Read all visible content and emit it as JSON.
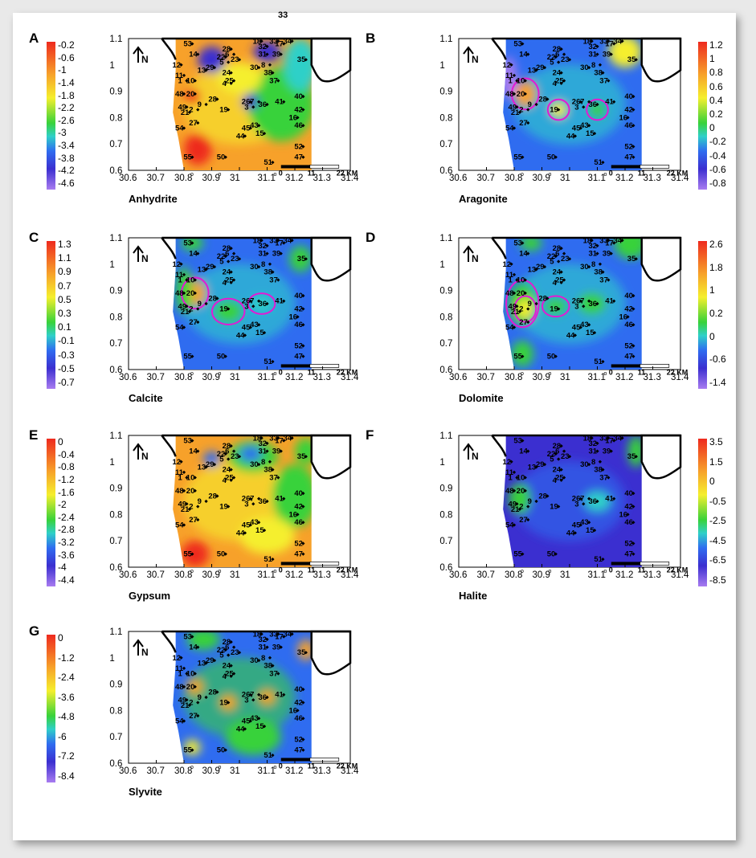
{
  "figure": {
    "top_label": "33",
    "x_ticks": [
      "30.6",
      "30.7",
      "30.8",
      "30.9",
      "31",
      "31.1",
      "31.2",
      "31.3",
      "31.4"
    ],
    "y_ticks": [
      "30.6",
      "30.7",
      "30.8",
      "30.9",
      "31",
      "31.1"
    ],
    "north_label": "N",
    "scale_bar": {
      "labels": [
        "0",
        "11",
        "22"
      ],
      "unit": "KM"
    },
    "panels": [
      {
        "letter": "A",
        "mineral": "Anhydrite",
        "colorbar_ticks": [
          "-0.2",
          "-0.6",
          "-1",
          "-1.4",
          "-1.8",
          "-2.2",
          "-2.6",
          "-3",
          "-3.4",
          "-3.8",
          "-4.2",
          "-4.6"
        ]
      },
      {
        "letter": "B",
        "mineral": "Aragonite",
        "colorbar_ticks": [
          "1.2",
          "1",
          "0.8",
          "0.6",
          "0.4",
          "0.2",
          "0",
          "-0.2",
          "-0.4",
          "-0.6",
          "-0.8"
        ]
      },
      {
        "letter": "C",
        "mineral": "Calcite",
        "colorbar_ticks": [
          "1.3",
          "1.1",
          "0.9",
          "0.7",
          "0.5",
          "0.3",
          "0.1",
          "-0.1",
          "-0.3",
          "-0.5",
          "-0.7"
        ]
      },
      {
        "letter": "D",
        "mineral": "Dolomite",
        "colorbar_ticks": [
          "2.6",
          "1.8",
          "1",
          "0.2",
          "0",
          "-0.6",
          "-1.4"
        ]
      },
      {
        "letter": "E",
        "mineral": "Gypsum",
        "colorbar_ticks": [
          "0",
          "-0.4",
          "-0.8",
          "-1.2",
          "-1.6",
          "-2",
          "-2.4",
          "-2.8",
          "-3.2",
          "-3.6",
          "-4",
          "-4.4"
        ]
      },
      {
        "letter": "F",
        "mineral": "Halite",
        "colorbar_ticks": [
          "3.5",
          "1.5",
          "0",
          "-0.5",
          "-2.5",
          "-4.5",
          "-6.5",
          "-8.5"
        ]
      },
      {
        "letter": "G",
        "mineral": "Slyvite",
        "colorbar_ticks": [
          "0",
          "-1.2",
          "-2.4",
          "-3.6",
          "-4.8",
          "-6",
          "-7.2",
          "-8.4"
        ]
      }
    ],
    "wells": [
      {
        "id": "53",
        "lon": 30.83,
        "lat": 31.08
      },
      {
        "id": "14",
        "lon": 30.85,
        "lat": 31.04
      },
      {
        "id": "12",
        "lon": 30.79,
        "lat": 31.0
      },
      {
        "id": "28",
        "lon": 30.97,
        "lat": 31.06
      },
      {
        "id": "22",
        "lon": 30.95,
        "lat": 31.03
      },
      {
        "id": "6",
        "lon": 30.98,
        "lat": 31.04
      },
      {
        "id": "23",
        "lon": 31.0,
        "lat": 31.02
      },
      {
        "id": "5",
        "lon": 30.96,
        "lat": 31.01
      },
      {
        "id": "13",
        "lon": 30.88,
        "lat": 30.98
      },
      {
        "id": "29",
        "lon": 30.91,
        "lat": 30.99
      },
      {
        "id": "24",
        "lon": 30.97,
        "lat": 30.97
      },
      {
        "id": "25",
        "lon": 30.98,
        "lat": 30.94
      },
      {
        "id": "4",
        "lon": 30.97,
        "lat": 30.93
      },
      {
        "id": "18",
        "lon": 31.08,
        "lat": 31.09
      },
      {
        "id": "32",
        "lon": 31.1,
        "lat": 31.07
      },
      {
        "id": "33",
        "lon": 31.14,
        "lat": 31.09
      },
      {
        "id": "17",
        "lon": 31.16,
        "lat": 31.08
      },
      {
        "id": "34",
        "lon": 31.19,
        "lat": 31.09
      },
      {
        "id": "31",
        "lon": 31.1,
        "lat": 31.04
      },
      {
        "id": "39",
        "lon": 31.15,
        "lat": 31.04
      },
      {
        "id": "35",
        "lon": 31.24,
        "lat": 31.02
      },
      {
        "id": "30",
        "lon": 31.07,
        "lat": 30.99
      },
      {
        "id": "8",
        "lon": 31.11,
        "lat": 31.0
      },
      {
        "id": "38",
        "lon": 31.12,
        "lat": 30.97
      },
      {
        "id": "37",
        "lon": 31.14,
        "lat": 30.94
      },
      {
        "id": "11",
        "lon": 30.8,
        "lat": 30.96
      },
      {
        "id": "1",
        "lon": 30.81,
        "lat": 30.94
      },
      {
        "id": "10",
        "lon": 30.84,
        "lat": 30.94
      },
      {
        "id": "48",
        "lon": 30.8,
        "lat": 30.89
      },
      {
        "id": "20",
        "lon": 30.84,
        "lat": 30.89
      },
      {
        "id": "9",
        "lon": 30.88,
        "lat": 30.85
      },
      {
        "id": "28b",
        "lon": 30.92,
        "lat": 30.87
      },
      {
        "id": "49",
        "lon": 30.81,
        "lat": 30.84
      },
      {
        "id": "21",
        "lon": 30.82,
        "lat": 30.82
      },
      {
        "id": "2",
        "lon": 30.85,
        "lat": 30.83
      },
      {
        "id": "19",
        "lon": 30.96,
        "lat": 30.83
      },
      {
        "id": "26",
        "lon": 31.04,
        "lat": 30.86
      },
      {
        "id": "3",
        "lon": 31.05,
        "lat": 30.84
      },
      {
        "id": "7",
        "lon": 31.07,
        "lat": 30.86
      },
      {
        "id": "36",
        "lon": 31.1,
        "lat": 30.85
      },
      {
        "id": "41",
        "lon": 31.16,
        "lat": 30.86
      },
      {
        "id": "40",
        "lon": 31.23,
        "lat": 30.88
      },
      {
        "id": "42",
        "lon": 31.23,
        "lat": 30.83
      },
      {
        "id": "16",
        "lon": 31.21,
        "lat": 30.8
      },
      {
        "id": "46",
        "lon": 31.23,
        "lat": 30.77
      },
      {
        "id": "54",
        "lon": 30.8,
        "lat": 30.76
      },
      {
        "id": "27",
        "lon": 30.85,
        "lat": 30.78
      },
      {
        "id": "45",
        "lon": 31.04,
        "lat": 30.76
      },
      {
        "id": "43",
        "lon": 31.07,
        "lat": 30.77
      },
      {
        "id": "44",
        "lon": 31.02,
        "lat": 30.73
      },
      {
        "id": "15",
        "lon": 31.09,
        "lat": 30.74
      },
      {
        "id": "52",
        "lon": 31.23,
        "lat": 30.69
      },
      {
        "id": "47",
        "lon": 31.23,
        "lat": 30.65
      },
      {
        "id": "55",
        "lon": 30.83,
        "lat": 30.65
      },
      {
        "id": "50",
        "lon": 30.95,
        "lat": 30.65
      },
      {
        "id": "51",
        "lon": 31.12,
        "lat": 30.63
      }
    ],
    "colors": {
      "dark": "#3b2fd0",
      "blue": "#2f6cf0",
      "cyan": "#2fd0c8",
      "green": "#38d23a",
      "yellow": "#f5ef2d",
      "orange": "#f7a12a",
      "red": "#ee2a1e",
      "violet": "#a87cf0",
      "contour": "#e11bd4"
    }
  }
}
